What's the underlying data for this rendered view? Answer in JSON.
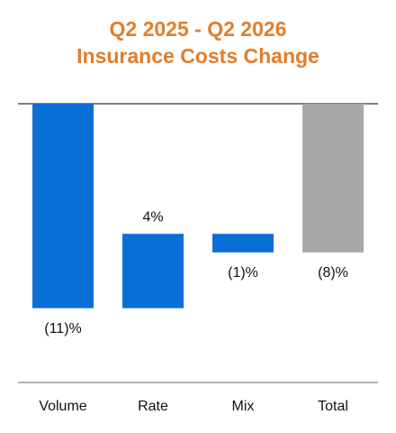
{
  "chart_data": {
    "type": "waterfall",
    "title": [
      "Q2 2025 - Q2 2026",
      "Insurance Costs Change"
    ],
    "categories": [
      "Volume",
      "Rate",
      "Mix",
      "Total"
    ],
    "values": [
      -11,
      4,
      -1,
      -8
    ],
    "value_labels": [
      "(11)%",
      "4%",
      "(1)%",
      "(8)%"
    ],
    "is_total": [
      false,
      false,
      false,
      true
    ],
    "color": "#0a6fd6",
    "total_color": "#a9a9a9",
    "title_color": "#e27d2b",
    "ylim": [
      -15,
      0
    ]
  }
}
